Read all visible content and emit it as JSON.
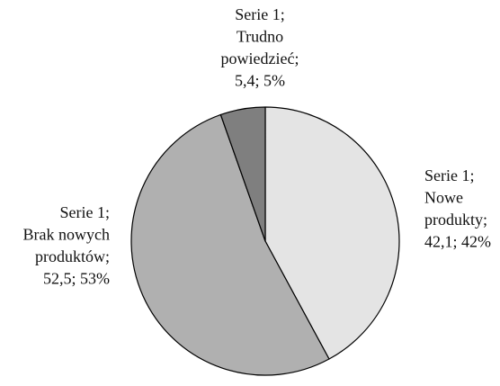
{
  "chart_data": {
    "type": "pie",
    "values": [
      42.1,
      52.5,
      5.4
    ],
    "colors": [
      "#e4e4e4",
      "#b0b0b0",
      "#7f7f7f"
    ],
    "data_labels": [
      [
        "Serie 1;",
        "Nowe",
        "produkty;",
        "42,1; 42%"
      ],
      [
        "Serie 1;",
        "Brak nowych",
        "produktów;",
        "52,5; 53%"
      ],
      [
        "Serie 1;",
        "Trudno",
        "powiedzieć;",
        "5,4; 5%"
      ]
    ]
  }
}
